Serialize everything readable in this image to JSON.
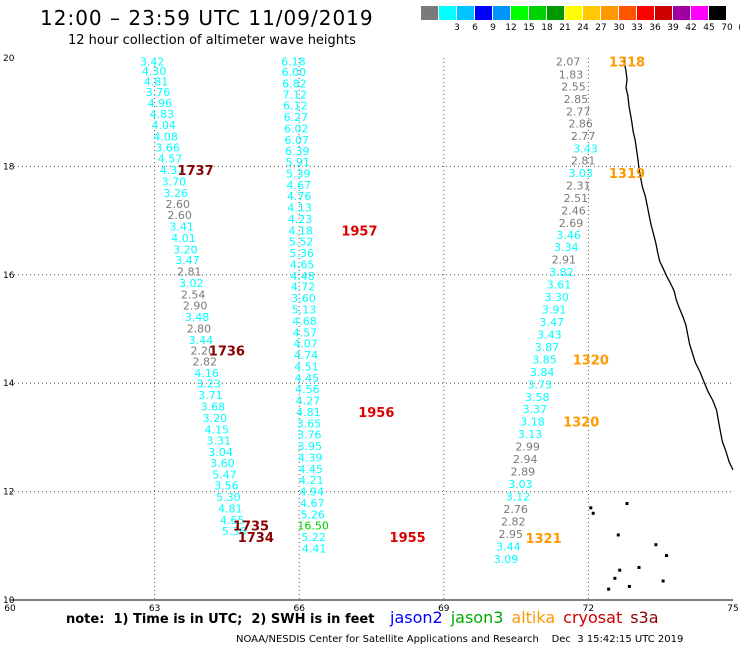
{
  "header": {
    "title": "12:00 – 23:59 UTC 11/09/2019",
    "subtitle": "12 hour collection of altimeter wave heights"
  },
  "legend": {
    "unit": "(ft)",
    "bins": [
      {
        "label": "",
        "color": "#7a7a7a"
      },
      {
        "label": "3",
        "color": "#00ffff"
      },
      {
        "label": "6",
        "color": "#00c4ff"
      },
      {
        "label": "9",
        "color": "#0000ff"
      },
      {
        "label": "12",
        "color": "#0096ff"
      },
      {
        "label": "15",
        "color": "#00ff00"
      },
      {
        "label": "18",
        "color": "#00d400"
      },
      {
        "label": "21",
        "color": "#009900"
      },
      {
        "label": "24",
        "color": "#ffff00"
      },
      {
        "label": "27",
        "color": "#ffc800"
      },
      {
        "label": "30",
        "color": "#ff9900"
      },
      {
        "label": "33",
        "color": "#ff5500"
      },
      {
        "label": "36",
        "color": "#ff0000"
      },
      {
        "label": "39",
        "color": "#cc0000"
      },
      {
        "label": "42",
        "color": "#a000a0"
      },
      {
        "label": "45",
        "color": "#ff00ff"
      },
      {
        "label": "70",
        "color": "#000000"
      }
    ]
  },
  "notes": {
    "note": "note:  1) Time is in UTC;  2) SWH is in feet",
    "footer": "NOAA/NESDIS Center for Satellite Applications and Research    Dec  3 15:42:15 UTC 2019"
  },
  "satellites": [
    {
      "name": "jason2",
      "color": "#0000ff"
    },
    {
      "name": "jason3",
      "color": "#00aa00"
    },
    {
      "name": "altika",
      "color": "#ff9900"
    },
    {
      "name": "cryosat",
      "color": "#cc0000"
    },
    {
      "name": "s3a",
      "color": "#8b0000"
    }
  ],
  "chart_data": {
    "type": "scatter",
    "title": "12 hour collection of altimeter wave heights",
    "xlabel": "",
    "ylabel": "",
    "xlim": [
      60,
      75
    ],
    "ylim": [
      10,
      20
    ],
    "x_ticks": [
      60,
      63,
      66,
      69,
      72,
      75
    ],
    "y_ticks": [
      10,
      12,
      14,
      16,
      18,
      20
    ],
    "grid": true,
    "colors": {
      "cyan": "#00ffff",
      "gray": "#7a7a7a",
      "green": "#00cc00",
      "darkred": "#8b0000",
      "red": "#dd0000",
      "orange": "#ff9900"
    },
    "tracks": [
      {
        "points": [
          [
            62.95,
            19.94,
            "3.42",
            "cyan"
          ],
          [
            62.99,
            19.76,
            "4.30",
            "cyan"
          ],
          [
            63.03,
            19.57,
            "4.81",
            "cyan"
          ],
          [
            63.07,
            19.37,
            "3.76",
            "cyan"
          ],
          [
            63.11,
            19.17,
            "4.96",
            "cyan"
          ],
          [
            63.15,
            18.97,
            "4.83",
            "cyan"
          ],
          [
            63.19,
            18.76,
            "4.04",
            "cyan"
          ],
          [
            63.23,
            18.55,
            "4.08",
            "cyan"
          ],
          [
            63.27,
            18.35,
            "3.66",
            "cyan"
          ],
          [
            63.32,
            18.15,
            "4.57",
            "cyan"
          ],
          [
            63.36,
            17.93,
            "4.37",
            "cyan"
          ],
          [
            63.4,
            17.72,
            "3.70",
            "cyan"
          ],
          [
            63.44,
            17.51,
            "3.26",
            "cyan"
          ],
          [
            63.48,
            17.31,
            "2.60",
            "gray"
          ],
          [
            63.52,
            17.1,
            "2.60",
            "gray"
          ],
          [
            63.56,
            16.89,
            "3.41",
            "cyan"
          ],
          [
            63.6,
            16.68,
            "4.01",
            "cyan"
          ],
          [
            63.64,
            16.47,
            "3.20",
            "cyan"
          ],
          [
            63.68,
            16.27,
            "3.47",
            "cyan"
          ],
          [
            63.72,
            16.06,
            "2.81",
            "gray"
          ],
          [
            63.76,
            15.85,
            "3.02",
            "cyan"
          ],
          [
            63.8,
            15.64,
            "2.54",
            "gray"
          ],
          [
            63.84,
            15.43,
            "2.90",
            "gray"
          ],
          [
            63.88,
            15.22,
            "3.48",
            "cyan"
          ],
          [
            63.92,
            15.01,
            "2.80",
            "gray"
          ],
          [
            63.96,
            14.8,
            "3.44",
            "cyan"
          ],
          [
            64.0,
            14.6,
            "2.20",
            "gray"
          ],
          [
            64.04,
            14.4,
            "2.82",
            "gray"
          ],
          [
            64.08,
            14.19,
            "4.16",
            "cyan"
          ],
          [
            64.12,
            13.99,
            "3.23",
            "cyan"
          ],
          [
            64.16,
            13.78,
            "3.71",
            "cyan"
          ],
          [
            64.21,
            13.57,
            "3.68",
            "cyan"
          ],
          [
            64.25,
            13.36,
            "3.20",
            "cyan"
          ],
          [
            64.29,
            13.15,
            "4.15",
            "cyan"
          ],
          [
            64.33,
            12.94,
            "3.31",
            "cyan"
          ],
          [
            64.37,
            12.73,
            "3.04",
            "cyan"
          ],
          [
            64.41,
            12.53,
            "3.60",
            "cyan"
          ],
          [
            64.45,
            12.32,
            "5.47",
            "cyan"
          ],
          [
            64.49,
            12.11,
            "3.56",
            "cyan"
          ],
          [
            64.53,
            11.9,
            "5.30",
            "cyan"
          ],
          [
            64.57,
            11.69,
            "4.81",
            "cyan"
          ],
          [
            64.61,
            11.48,
            "4.65",
            "cyan"
          ],
          [
            64.65,
            11.27,
            "5.36",
            "cyan"
          ]
        ]
      },
      {
        "points": [
          [
            65.88,
            19.94,
            "6.18",
            "cyan"
          ],
          [
            65.89,
            19.74,
            "6.00",
            "cyan"
          ],
          [
            65.9,
            19.53,
            "6.82",
            "cyan"
          ],
          [
            65.91,
            19.33,
            "7.12",
            "cyan"
          ],
          [
            65.92,
            19.12,
            "6.12",
            "cyan"
          ],
          [
            65.93,
            18.91,
            "6.27",
            "cyan"
          ],
          [
            65.94,
            18.7,
            "6.02",
            "cyan"
          ],
          [
            65.95,
            18.49,
            "6.07",
            "cyan"
          ],
          [
            65.96,
            18.28,
            "6.39",
            "cyan"
          ],
          [
            65.97,
            18.08,
            "5.91",
            "cyan"
          ],
          [
            65.98,
            17.87,
            "5.39",
            "cyan"
          ],
          [
            65.99,
            17.66,
            "4.67",
            "cyan"
          ],
          [
            66.0,
            17.45,
            "4.76",
            "cyan"
          ],
          [
            66.01,
            17.24,
            "4.13",
            "cyan"
          ],
          [
            66.02,
            17.03,
            "4.23",
            "cyan"
          ],
          [
            66.03,
            16.82,
            "4.18",
            "cyan"
          ],
          [
            66.04,
            16.61,
            "5.52",
            "cyan"
          ],
          [
            66.05,
            16.4,
            "5.36",
            "cyan"
          ],
          [
            66.06,
            16.19,
            "4.65",
            "cyan"
          ],
          [
            66.07,
            15.98,
            "4.48",
            "cyan"
          ],
          [
            66.08,
            15.78,
            "4.72",
            "cyan"
          ],
          [
            66.09,
            15.57,
            "3.60",
            "cyan"
          ],
          [
            66.1,
            15.36,
            "5.13",
            "cyan"
          ],
          [
            66.11,
            15.15,
            "4.68",
            "cyan"
          ],
          [
            66.12,
            14.94,
            "4.57",
            "cyan"
          ],
          [
            66.13,
            14.73,
            "4.07",
            "cyan"
          ],
          [
            66.14,
            14.52,
            "4.74",
            "cyan"
          ],
          [
            66.15,
            14.31,
            "4.51",
            "cyan"
          ],
          [
            66.16,
            14.1,
            "4.45",
            "cyan"
          ],
          [
            66.17,
            13.89,
            "4.56",
            "cyan"
          ],
          [
            66.18,
            13.68,
            "4.27",
            "cyan"
          ],
          [
            66.19,
            13.47,
            "4.81",
            "cyan"
          ],
          [
            66.2,
            13.26,
            "3.65",
            "cyan"
          ],
          [
            66.21,
            13.05,
            "3.76",
            "cyan"
          ],
          [
            66.22,
            12.84,
            "3.95",
            "cyan"
          ],
          [
            66.23,
            12.63,
            "4.39",
            "cyan"
          ],
          [
            66.24,
            12.42,
            "4.45",
            "cyan"
          ],
          [
            66.25,
            12.21,
            "4.21",
            "cyan"
          ],
          [
            66.26,
            12.0,
            "4.94",
            "cyan"
          ],
          [
            66.27,
            11.79,
            "4.67",
            "cyan"
          ],
          [
            66.28,
            11.58,
            "5.26",
            "cyan"
          ],
          [
            66.29,
            11.37,
            "16.50",
            "green"
          ],
          [
            66.3,
            11.16,
            "5.22",
            "cyan"
          ],
          [
            66.31,
            10.95,
            "4.41",
            "cyan"
          ]
        ]
      },
      {
        "points": [
          [
            71.58,
            19.94,
            "2.07",
            "gray"
          ],
          [
            71.64,
            19.7,
            "1.83",
            "gray"
          ],
          [
            71.69,
            19.47,
            "2.55",
            "gray"
          ],
          [
            71.74,
            19.24,
            "2.85",
            "gray"
          ],
          [
            71.79,
            19.01,
            "2.77",
            "gray"
          ],
          [
            71.84,
            18.79,
            "2.86",
            "gray"
          ],
          [
            71.89,
            18.56,
            "2.77",
            "gray"
          ],
          [
            71.94,
            18.33,
            "3.43",
            "cyan"
          ],
          [
            71.89,
            18.11,
            "2.81",
            "gray"
          ],
          [
            71.84,
            17.88,
            "3.03",
            "cyan"
          ],
          [
            71.79,
            17.65,
            "2.31",
            "gray"
          ],
          [
            71.74,
            17.42,
            "2.51",
            "gray"
          ],
          [
            71.69,
            17.19,
            "2.46",
            "gray"
          ],
          [
            71.64,
            16.96,
            "2.69",
            "gray"
          ],
          [
            71.59,
            16.73,
            "3.46",
            "cyan"
          ],
          [
            71.54,
            16.51,
            "3.34",
            "cyan"
          ],
          [
            71.49,
            16.28,
            "2.91",
            "gray"
          ],
          [
            71.44,
            16.05,
            "3.82",
            "cyan"
          ],
          [
            71.39,
            15.82,
            "3.61",
            "cyan"
          ],
          [
            71.34,
            15.59,
            "3.30",
            "cyan"
          ],
          [
            71.29,
            15.36,
            "3.91",
            "cyan"
          ],
          [
            71.24,
            15.13,
            "3.47",
            "cyan"
          ],
          [
            71.19,
            14.9,
            "3.43",
            "cyan"
          ],
          [
            71.14,
            14.67,
            "3.87",
            "cyan"
          ],
          [
            71.09,
            14.44,
            "3.85",
            "cyan"
          ],
          [
            71.04,
            14.21,
            "3.84",
            "cyan"
          ],
          [
            70.99,
            13.98,
            "3.73",
            "cyan"
          ],
          [
            70.94,
            13.75,
            "3.58",
            "cyan"
          ],
          [
            70.89,
            13.52,
            "3.37",
            "cyan"
          ],
          [
            70.84,
            13.29,
            "3.18",
            "cyan"
          ],
          [
            70.79,
            13.06,
            "3.13",
            "cyan"
          ],
          [
            70.74,
            12.83,
            "2.99",
            "gray"
          ],
          [
            70.69,
            12.6,
            "2.94",
            "gray"
          ],
          [
            70.64,
            12.37,
            "2.89",
            "gray"
          ],
          [
            70.59,
            12.14,
            "3.03",
            "cyan"
          ],
          [
            70.54,
            11.91,
            "3.12",
            "cyan"
          ],
          [
            70.49,
            11.68,
            "2.76",
            "gray"
          ],
          [
            70.44,
            11.45,
            "2.82",
            "gray"
          ],
          [
            70.39,
            11.22,
            "2.95",
            "gray"
          ],
          [
            70.34,
            10.99,
            "3.44",
            "cyan"
          ],
          [
            70.29,
            10.76,
            "3.09",
            "cyan"
          ]
        ]
      }
    ],
    "time_labels": [
      {
        "text": "1737",
        "x": 63.85,
        "y": 17.93,
        "color": "darkred"
      },
      {
        "text": "1736",
        "x": 64.5,
        "y": 14.6,
        "color": "darkred"
      },
      {
        "text": "1735",
        "x": 65.0,
        "y": 11.37,
        "color": "darkred"
      },
      {
        "text": "1734",
        "x": 65.1,
        "y": 11.16,
        "color": "darkred"
      },
      {
        "text": "1957",
        "x": 67.25,
        "y": 16.82,
        "color": "red"
      },
      {
        "text": "1956",
        "x": 67.6,
        "y": 13.47,
        "color": "red"
      },
      {
        "text": "1955",
        "x": 68.25,
        "y": 11.16,
        "color": "red"
      },
      {
        "text": "1318",
        "x": 72.8,
        "y": 19.94,
        "color": "orange"
      },
      {
        "text": "1319",
        "x": 72.8,
        "y": 17.88,
        "color": "orange"
      },
      {
        "text": "1320",
        "x": 72.05,
        "y": 14.44,
        "color": "orange"
      },
      {
        "text": "1320",
        "x": 71.85,
        "y": 13.29,
        "color": "orange"
      },
      {
        "text": "1321",
        "x": 71.07,
        "y": 11.14,
        "color": "orange"
      }
    ],
    "coastline": [
      [
        72.76,
        20.02
      ],
      [
        72.75,
        19.9
      ],
      [
        72.78,
        19.76
      ],
      [
        72.8,
        19.6
      ],
      [
        72.78,
        19.45
      ],
      [
        72.82,
        19.3
      ],
      [
        72.84,
        19.12
      ],
      [
        72.87,
        18.98
      ],
      [
        72.9,
        18.82
      ],
      [
        72.93,
        18.64
      ],
      [
        72.97,
        18.48
      ],
      [
        73.0,
        18.3
      ],
      [
        73.03,
        18.12
      ],
      [
        73.05,
        17.96
      ],
      [
        73.08,
        17.8
      ],
      [
        73.12,
        17.62
      ],
      [
        73.18,
        17.45
      ],
      [
        73.22,
        17.28
      ],
      [
        73.26,
        17.1
      ],
      [
        73.3,
        16.92
      ],
      [
        73.35,
        16.75
      ],
      [
        73.4,
        16.58
      ],
      [
        73.44,
        16.4
      ],
      [
        73.48,
        16.25
      ],
      [
        73.55,
        16.12
      ],
      [
        73.62,
        15.98
      ],
      [
        73.7,
        15.85
      ],
      [
        73.78,
        15.7
      ],
      [
        73.82,
        15.55
      ],
      [
        73.88,
        15.4
      ],
      [
        73.95,
        15.25
      ],
      [
        74.02,
        15.08
      ],
      [
        74.06,
        14.9
      ],
      [
        74.1,
        14.72
      ],
      [
        74.16,
        14.55
      ],
      [
        74.22,
        14.38
      ],
      [
        74.32,
        14.2
      ],
      [
        74.4,
        14.02
      ],
      [
        74.48,
        13.85
      ],
      [
        74.58,
        13.68
      ],
      [
        74.66,
        13.5
      ],
      [
        74.7,
        13.3
      ],
      [
        74.74,
        13.1
      ],
      [
        74.78,
        12.92
      ],
      [
        74.85,
        12.75
      ],
      [
        74.92,
        12.55
      ],
      [
        75.0,
        12.4
      ]
    ],
    "islands": [
      [
        72.05,
        11.7
      ],
      [
        72.1,
        11.6
      ],
      [
        72.8,
        11.78
      ],
      [
        72.62,
        11.2
      ],
      [
        73.4,
        11.02
      ],
      [
        73.62,
        10.82
      ],
      [
        73.05,
        10.6
      ],
      [
        72.65,
        10.55
      ],
      [
        72.55,
        10.4
      ],
      [
        72.85,
        10.25
      ],
      [
        73.55,
        10.35
      ],
      [
        72.42,
        10.2
      ]
    ]
  }
}
